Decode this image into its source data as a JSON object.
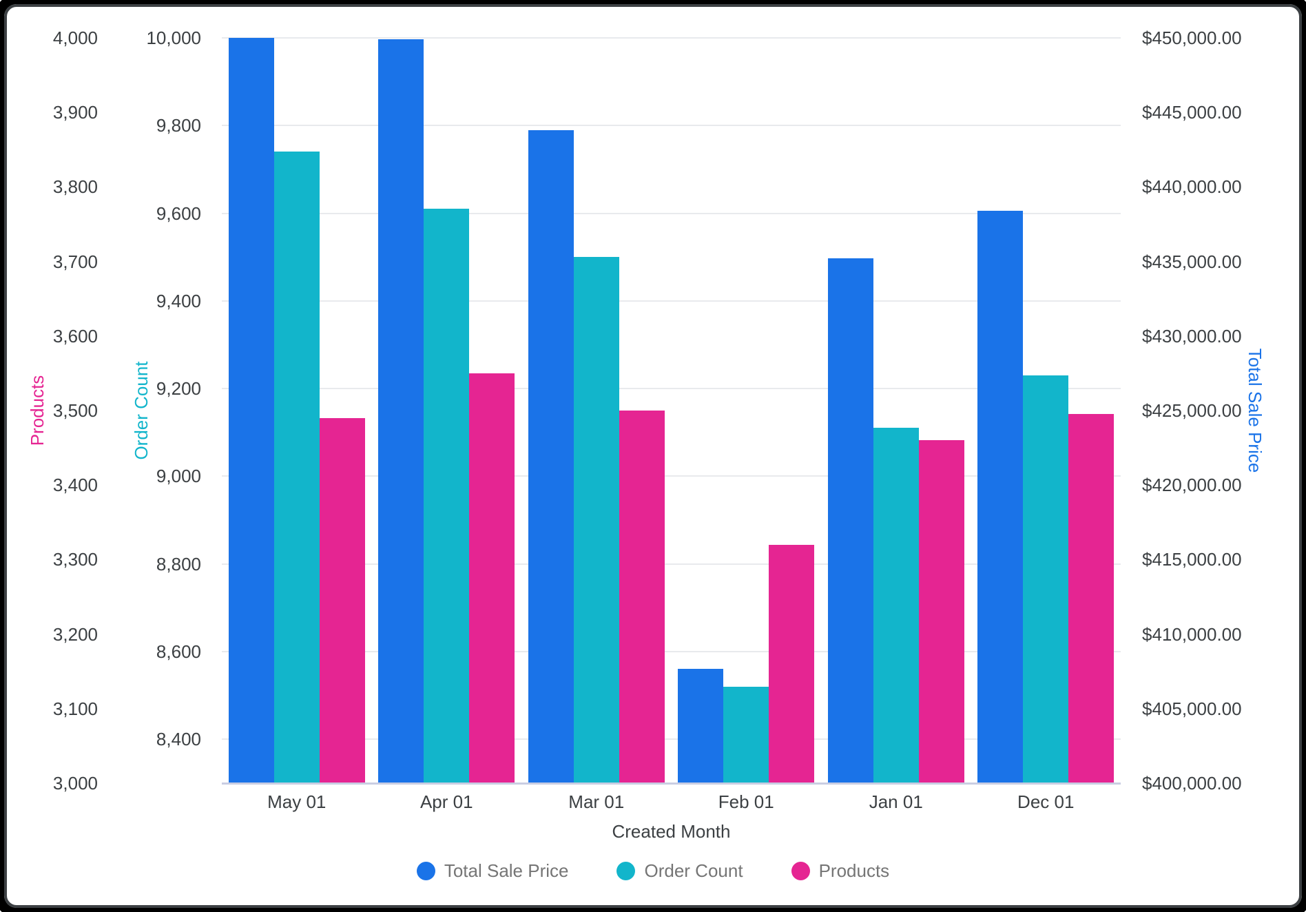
{
  "chart_data": {
    "type": "bar",
    "xlabel": "Created Month",
    "categories": [
      "May 01",
      "Apr 01",
      "Mar 01",
      "Feb 01",
      "Jan 01",
      "Dec 01"
    ],
    "series": [
      {
        "name": "Total Sale Price",
        "axis": "price",
        "color": "#1A73E8",
        "values": [
          450000,
          449900,
          443800,
          407650,
          435200,
          438400
        ]
      },
      {
        "name": "Order Count",
        "axis": "order",
        "color": "#12B5CB",
        "values": [
          9740,
          9610,
          9500,
          8520,
          9110,
          9230
        ]
      },
      {
        "name": "Products",
        "axis": "products",
        "color": "#E52592",
        "values": [
          3490,
          3550,
          3500,
          3320,
          3460,
          3495
        ]
      }
    ],
    "axes": {
      "products": {
        "title": "Products",
        "color": "#E52592",
        "min": 3000,
        "max": 4000,
        "ticks": [
          {
            "v": 4000,
            "label": "4,000"
          },
          {
            "v": 3900,
            "label": "3,900"
          },
          {
            "v": 3800,
            "label": "3,800"
          },
          {
            "v": 3700,
            "label": "3,700"
          },
          {
            "v": 3600,
            "label": "3,600"
          },
          {
            "v": 3500,
            "label": "3,500"
          },
          {
            "v": 3400,
            "label": "3,400"
          },
          {
            "v": 3300,
            "label": "3,300"
          },
          {
            "v": 3200,
            "label": "3,200"
          },
          {
            "v": 3100,
            "label": "3,100"
          },
          {
            "v": 3000,
            "label": "3,000"
          }
        ]
      },
      "order": {
        "title": "Order Count",
        "color": "#12B5CB",
        "min": 8300,
        "max": 10000,
        "ticks": [
          {
            "v": 10000,
            "label": "10,000"
          },
          {
            "v": 9800,
            "label": "9,800"
          },
          {
            "v": 9600,
            "label": "9,600"
          },
          {
            "v": 9400,
            "label": "9,400"
          },
          {
            "v": 9200,
            "label": "9,200"
          },
          {
            "v": 9000,
            "label": "9,000"
          },
          {
            "v": 8800,
            "label": "8,800"
          },
          {
            "v": 8600,
            "label": "8,600"
          },
          {
            "v": 8400,
            "label": "8,400"
          }
        ]
      },
      "price": {
        "title": "Total Sale Price",
        "color": "#1A73E8",
        "min": 400000,
        "max": 450000,
        "ticks": [
          {
            "v": 450000,
            "label": "$450,000.00"
          },
          {
            "v": 445000,
            "label": "$445,000.00"
          },
          {
            "v": 440000,
            "label": "$440,000.00"
          },
          {
            "v": 435000,
            "label": "$435,000.00"
          },
          {
            "v": 430000,
            "label": "$430,000.00"
          },
          {
            "v": 425000,
            "label": "$425,000.00"
          },
          {
            "v": 420000,
            "label": "$420,000.00"
          },
          {
            "v": 415000,
            "label": "$415,000.00"
          },
          {
            "v": 410000,
            "label": "$410,000.00"
          },
          {
            "v": 405000,
            "label": "$405,000.00"
          },
          {
            "v": 400000,
            "label": "$400,000.00"
          }
        ]
      }
    },
    "legend_position": "bottom",
    "grid": "horizontal"
  }
}
